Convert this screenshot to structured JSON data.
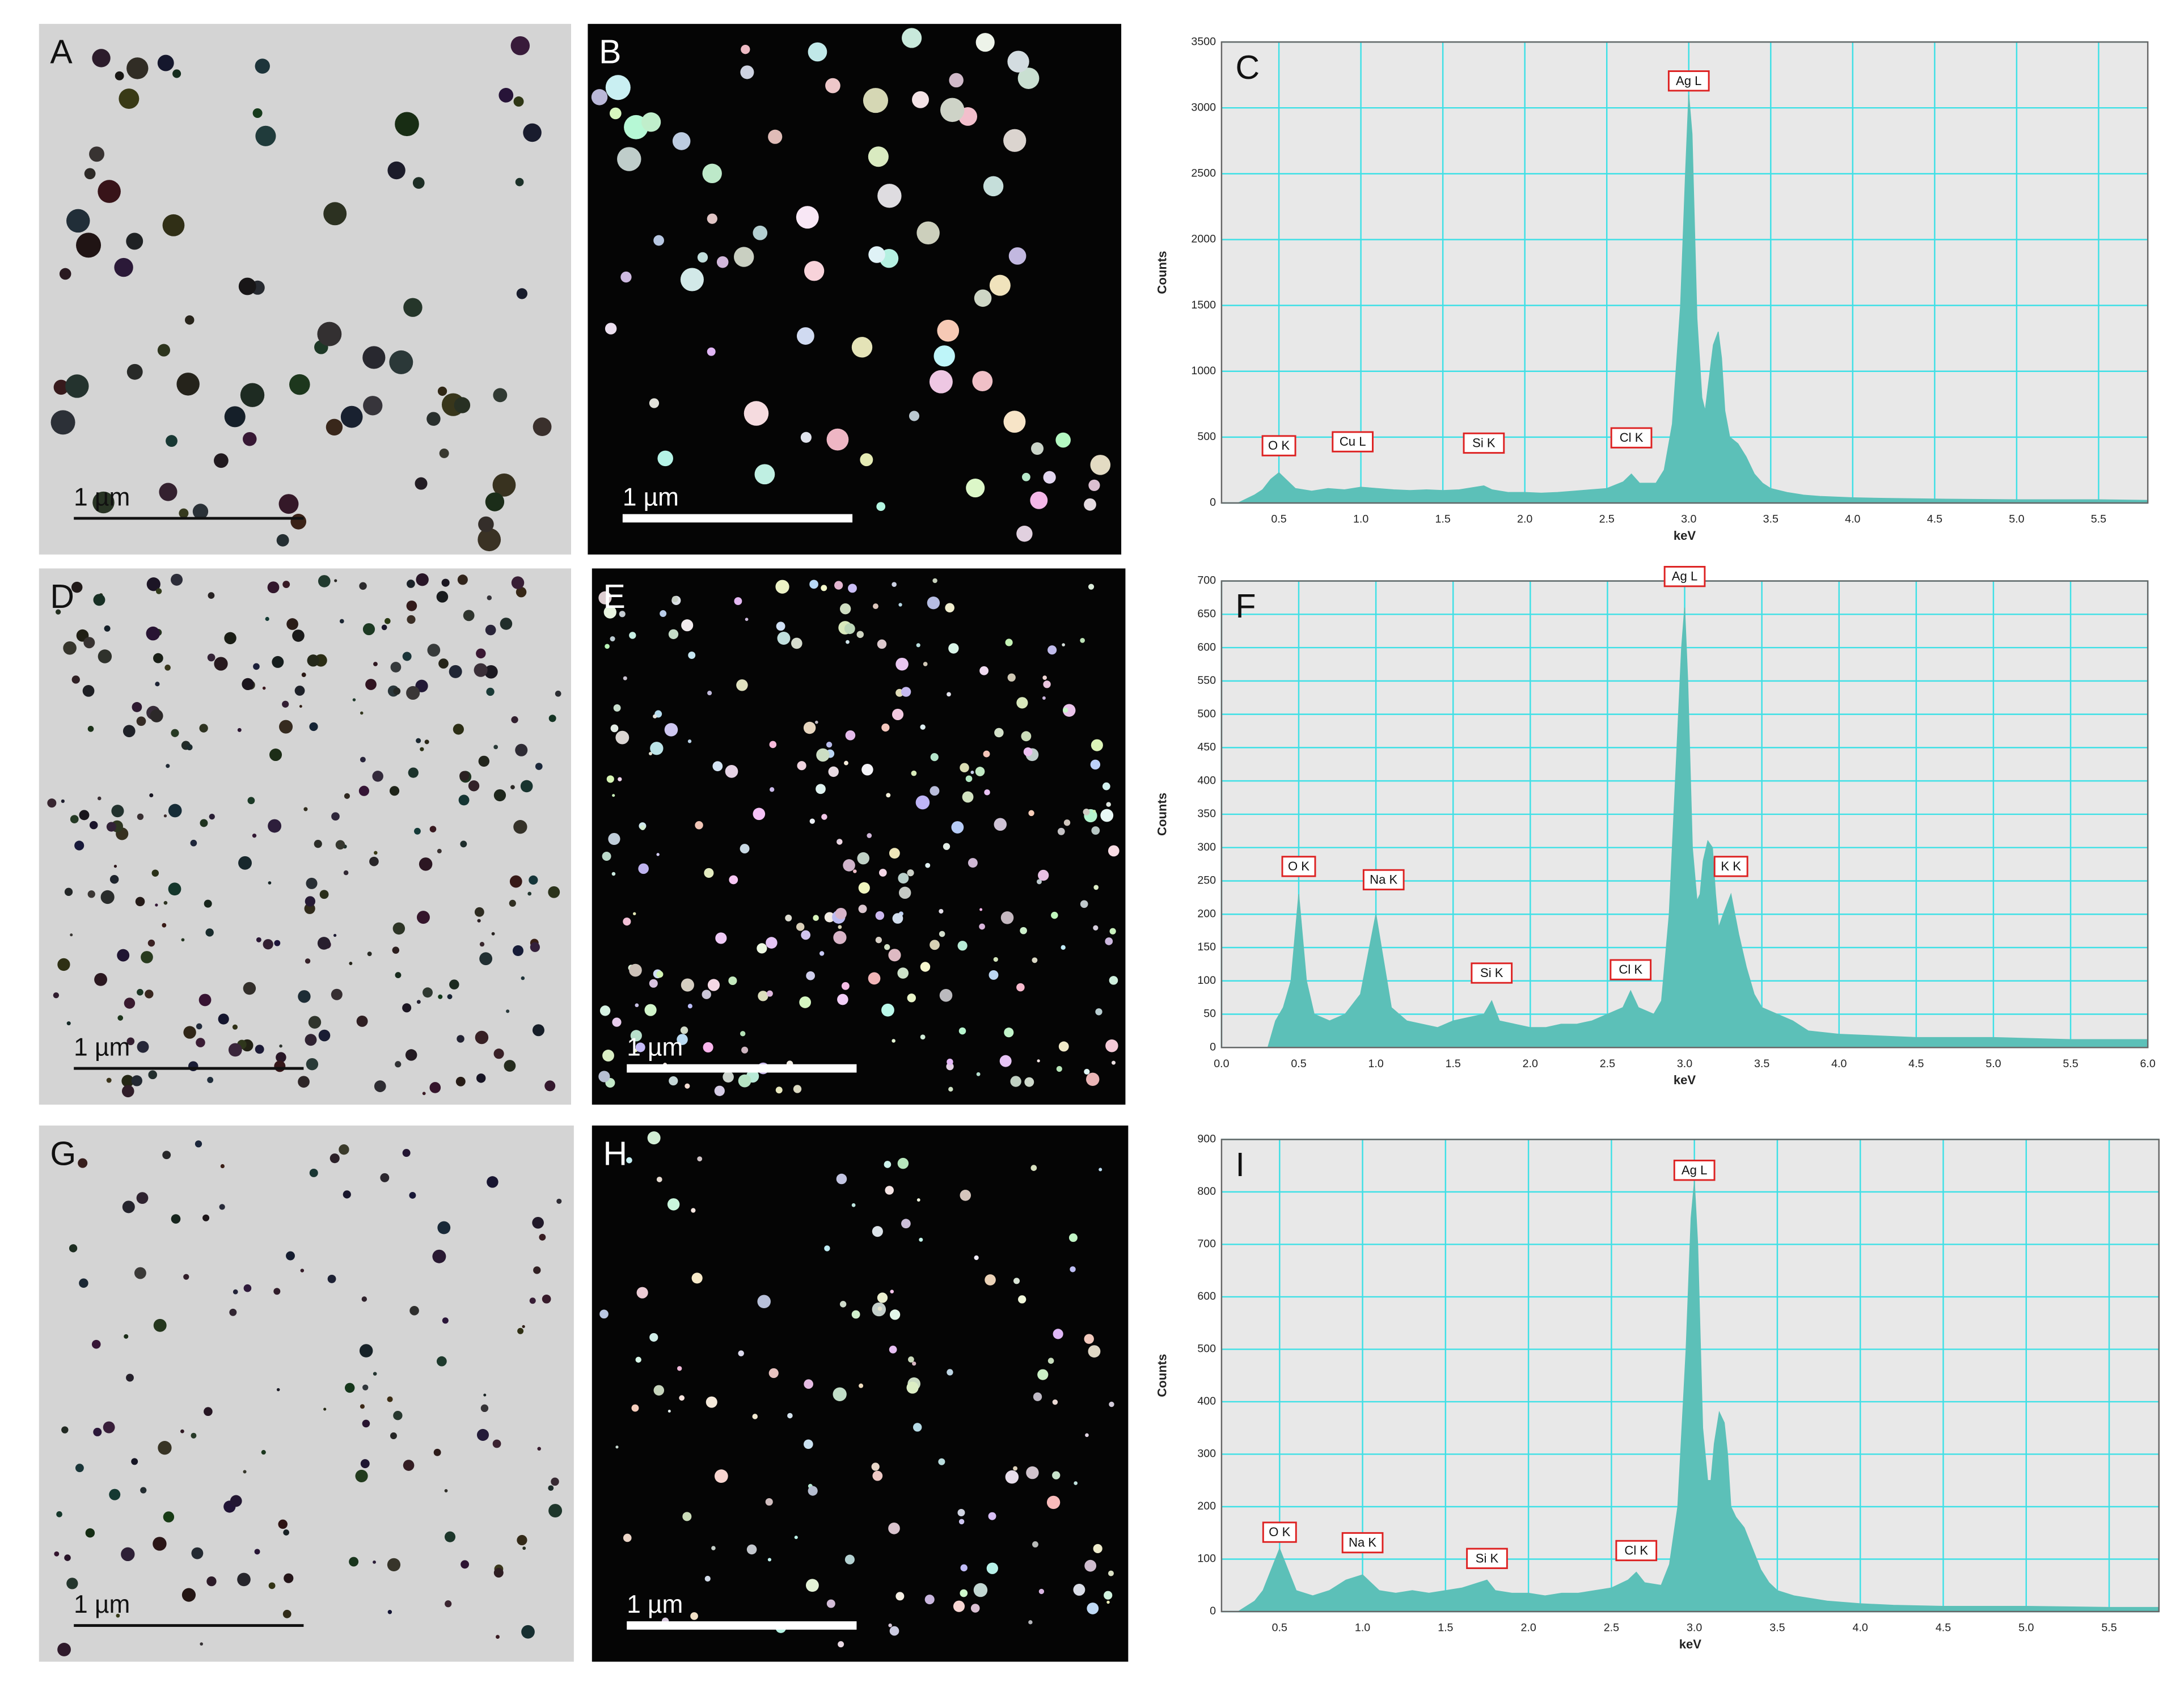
{
  "images": [
    {
      "label": "A",
      "scale_bar": "1 µm"
    },
    {
      "label": "B",
      "scale_bar": "1 µm"
    },
    {
      "label": "D",
      "scale_bar": "1 µm"
    },
    {
      "label": "E",
      "scale_bar": "1 µm"
    },
    {
      "label": "G",
      "scale_bar": "1 µm"
    },
    {
      "label": "H",
      "scale_bar": "1 µm"
    }
  ],
  "chart_data": [
    {
      "type": "area",
      "title": "C",
      "x_label": "keV",
      "y_label": "Counts",
      "color": "#5cc0b8",
      "grid": true,
      "xlim": [
        0.15,
        5.8
      ],
      "ylim": [
        0,
        3500
      ],
      "xticks": [
        0.5,
        {
          "value": 1,
          "label": "1.0"
        },
        1.5,
        {
          "value": 2,
          "label": "2.0"
        },
        2.5,
        {
          "value": 3,
          "label": "3.0"
        },
        3.5,
        {
          "value": 4,
          "label": "4.0"
        },
        4.5,
        {
          "value": 5,
          "label": "5.0"
        },
        5.5
      ],
      "yticks": [
        0,
        500,
        1000,
        1500,
        2000,
        2500,
        3000,
        3500
      ],
      "x": [
        0.25,
        0.3,
        0.35,
        0.4,
        0.45,
        0.5,
        0.55,
        0.6,
        0.7,
        0.8,
        0.9,
        1.0,
        1.1,
        1.2,
        1.3,
        1.4,
        1.5,
        1.6,
        1.7,
        1.75,
        1.8,
        1.9,
        2.0,
        2.1,
        2.2,
        2.3,
        2.4,
        2.5,
        2.6,
        2.65,
        2.7,
        2.8,
        2.85,
        2.9,
        2.95,
        2.98,
        3.0,
        3.02,
        3.05,
        3.08,
        3.1,
        3.12,
        3.15,
        3.18,
        3.2,
        3.22,
        3.25,
        3.3,
        3.35,
        3.4,
        3.45,
        3.5,
        3.6,
        3.7,
        3.8,
        4.0,
        4.2,
        4.5,
        5.0,
        5.5,
        5.8
      ],
      "values": [
        0,
        30,
        60,
        100,
        180,
        230,
        170,
        110,
        90,
        110,
        100,
        120,
        110,
        100,
        95,
        100,
        95,
        100,
        120,
        130,
        100,
        80,
        80,
        75,
        80,
        90,
        100,
        110,
        160,
        220,
        150,
        150,
        250,
        600,
        1500,
        2500,
        3100,
        2800,
        1400,
        800,
        700,
        900,
        1200,
        1300,
        1100,
        700,
        500,
        450,
        350,
        220,
        150,
        110,
        80,
        60,
        50,
        40,
        35,
        30,
        25,
        25,
        20
      ],
      "annotations": [
        {
          "text": "O K",
          "x": 0.5,
          "y": 350
        },
        {
          "text": "Cu L",
          "x": 0.95,
          "y": 380
        },
        {
          "text": "Si K",
          "x": 1.75,
          "y": 370
        },
        {
          "text": "Cl K",
          "x": 2.65,
          "y": 410
        },
        {
          "text": "Ag L",
          "x": 3.0,
          "y": 3120
        }
      ]
    },
    {
      "type": "area",
      "title": "F",
      "x_label": "keV",
      "y_label": "Counts",
      "color": "#5cc0b8",
      "grid": true,
      "xlim": [
        0,
        6
      ],
      "ylim": [
        0,
        700
      ],
      "xticks": [
        {
          "value": 0,
          "label": "0.0"
        },
        0.5,
        {
          "value": 1,
          "label": "1.0"
        },
        1.5,
        {
          "value": 2,
          "label": "2.0"
        },
        2.5,
        {
          "value": 3,
          "label": "3.0"
        },
        3.5,
        {
          "value": 4,
          "label": "4.0"
        },
        4.5,
        {
          "value": 5,
          "label": "5.0"
        },
        5.5,
        {
          "value": 6,
          "label": "6.0"
        }
      ],
      "yticks": [
        0,
        50,
        100,
        150,
        200,
        250,
        300,
        350,
        400,
        450,
        500,
        550,
        600,
        650,
        700
      ],
      "x": [
        0.25,
        0.3,
        0.35,
        0.4,
        0.45,
        0.5,
        0.55,
        0.6,
        0.7,
        0.8,
        0.9,
        1.0,
        1.1,
        1.2,
        1.3,
        1.4,
        1.5,
        1.6,
        1.7,
        1.75,
        1.8,
        1.9,
        2.0,
        2.1,
        2.2,
        2.3,
        2.4,
        2.5,
        2.6,
        2.65,
        2.7,
        2.8,
        2.85,
        2.9,
        2.95,
        2.98,
        3.0,
        3.02,
        3.05,
        3.08,
        3.1,
        3.12,
        3.15,
        3.18,
        3.2,
        3.22,
        3.25,
        3.3,
        3.35,
        3.4,
        3.45,
        3.5,
        3.6,
        3.7,
        3.8,
        4.0,
        4.2,
        4.5,
        5.0,
        5.5,
        5.8,
        6.0
      ],
      "values": [
        0,
        0,
        40,
        60,
        100,
        230,
        100,
        50,
        40,
        50,
        80,
        200,
        60,
        40,
        35,
        30,
        40,
        45,
        50,
        70,
        40,
        35,
        30,
        30,
        35,
        35,
        40,
        50,
        60,
        85,
        60,
        50,
        70,
        200,
        450,
        600,
        660,
        550,
        300,
        220,
        230,
        280,
        310,
        300,
        230,
        180,
        200,
        230,
        170,
        120,
        80,
        60,
        50,
        40,
        25,
        20,
        18,
        15,
        15,
        12,
        12,
        12
      ],
      "annotations": [
        {
          "text": "O K",
          "x": 0.5,
          "y": 255
        },
        {
          "text": "Na K",
          "x": 1.05,
          "y": 235
        },
        {
          "text": "Si K",
          "x": 1.75,
          "y": 95
        },
        {
          "text": "Cl K",
          "x": 2.65,
          "y": 100
        },
        {
          "text": "Ag L",
          "x": 3.0,
          "y": 690
        },
        {
          "text": "K K",
          "x": 3.3,
          "y": 255
        }
      ]
    },
    {
      "type": "area",
      "title": "I",
      "x_label": "keV",
      "y_label": "Counts",
      "color": "#5cc0b8",
      "grid": true,
      "xlim": [
        0.15,
        5.8
      ],
      "ylim": [
        0,
        900
      ],
      "xticks": [
        0.5,
        {
          "value": 1,
          "label": "1.0"
        },
        1.5,
        {
          "value": 2,
          "label": "2.0"
        },
        2.5,
        {
          "value": 3,
          "label": "3.0"
        },
        3.5,
        {
          "value": 4,
          "label": "4.0"
        },
        4.5,
        {
          "value": 5,
          "label": "5.0"
        },
        5.5
      ],
      "yticks": [
        0,
        100,
        200,
        300,
        400,
        500,
        600,
        700,
        800,
        900
      ],
      "x": [
        0.25,
        0.3,
        0.35,
        0.4,
        0.45,
        0.5,
        0.55,
        0.6,
        0.7,
        0.8,
        0.9,
        1.0,
        1.1,
        1.2,
        1.3,
        1.4,
        1.5,
        1.6,
        1.7,
        1.75,
        1.8,
        1.9,
        2.0,
        2.1,
        2.2,
        2.3,
        2.4,
        2.5,
        2.6,
        2.65,
        2.7,
        2.8,
        2.85,
        2.9,
        2.95,
        2.98,
        3.0,
        3.02,
        3.05,
        3.08,
        3.1,
        3.12,
        3.15,
        3.18,
        3.2,
        3.22,
        3.25,
        3.3,
        3.35,
        3.4,
        3.45,
        3.5,
        3.6,
        3.7,
        3.8,
        4.0,
        4.2,
        4.5,
        5.0,
        5.5,
        5.8
      ],
      "values": [
        0,
        10,
        20,
        40,
        80,
        120,
        80,
        40,
        30,
        40,
        60,
        70,
        40,
        35,
        40,
        35,
        40,
        45,
        55,
        60,
        40,
        35,
        35,
        30,
        35,
        35,
        40,
        45,
        60,
        75,
        55,
        50,
        90,
        200,
        500,
        750,
        820,
        700,
        350,
        250,
        250,
        320,
        380,
        360,
        300,
        200,
        180,
        160,
        120,
        80,
        55,
        40,
        30,
        25,
        20,
        15,
        12,
        10,
        10,
        8,
        8
      ],
      "annotations": [
        {
          "text": "O K",
          "x": 0.5,
          "y": 130
        },
        {
          "text": "Na K",
          "x": 1.0,
          "y": 110
        },
        {
          "text": "Si K",
          "x": 1.75,
          "y": 80
        },
        {
          "text": "Cl K",
          "x": 2.65,
          "y": 95
        },
        {
          "text": "Ag L",
          "x": 3.0,
          "y": 820
        }
      ]
    }
  ]
}
